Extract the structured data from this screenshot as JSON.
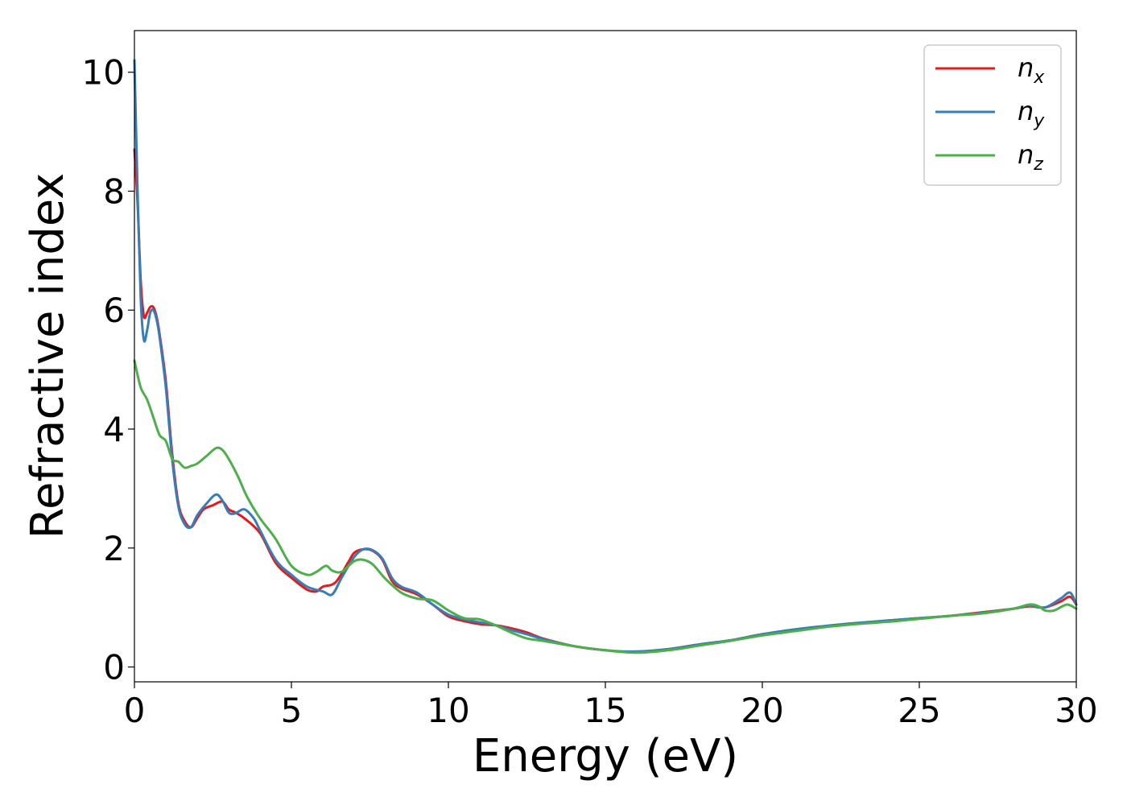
{
  "chart_data": {
    "type": "line",
    "xlabel": "Energy (eV)",
    "ylabel": "Refractive index",
    "xlim": [
      0,
      30
    ],
    "ylim": [
      -0.25,
      10.7
    ],
    "xticks": [
      "0",
      "5",
      "10",
      "15",
      "20",
      "25",
      "30"
    ],
    "yticks": [
      "0",
      "2",
      "4",
      "6",
      "8",
      "10"
    ],
    "legend_position": "top-right",
    "grid": false,
    "series": [
      {
        "name": "n",
        "subscript": "x",
        "color": "#e41a1c",
        "x": [
          0,
          0.1,
          0.2,
          0.3,
          0.4,
          0.5,
          0.6,
          0.7,
          0.8,
          1.0,
          1.2,
          1.4,
          1.6,
          1.8,
          2.0,
          2.2,
          2.5,
          2.8,
          3.0,
          3.2,
          3.5,
          4.0,
          4.5,
          5.0,
          5.5,
          5.8,
          6.0,
          6.4,
          6.8,
          7.0,
          7.3,
          7.6,
          7.9,
          8.2,
          8.5,
          9.0,
          9.5,
          10.0,
          10.5,
          11.0,
          11.5,
          12.0,
          12.5,
          13.0,
          14.0,
          15.0,
          16.0,
          17.0,
          18.0,
          19.0,
          20.0,
          21.0,
          22.0,
          23.0,
          24.0,
          25.0,
          26.0,
          27.0,
          28.0,
          28.5,
          29.0,
          29.5,
          29.8,
          30.0
        ],
        "y": [
          8.7,
          7.8,
          6.5,
          5.9,
          5.95,
          6.05,
          6.05,
          5.9,
          5.6,
          4.8,
          3.6,
          2.75,
          2.45,
          2.35,
          2.5,
          2.65,
          2.72,
          2.78,
          2.65,
          2.6,
          2.5,
          2.25,
          1.75,
          1.5,
          1.3,
          1.27,
          1.35,
          1.42,
          1.75,
          1.92,
          1.98,
          1.95,
          1.8,
          1.45,
          1.32,
          1.22,
          1.05,
          0.85,
          0.77,
          0.72,
          0.7,
          0.65,
          0.58,
          0.48,
          0.35,
          0.28,
          0.25,
          0.3,
          0.38,
          0.45,
          0.55,
          0.62,
          0.68,
          0.73,
          0.78,
          0.82,
          0.86,
          0.92,
          0.98,
          1.02,
          1.0,
          1.1,
          1.18,
          1.05
        ]
      },
      {
        "name": "n",
        "subscript": "y",
        "color": "#377eb8",
        "x": [
          0,
          0.1,
          0.2,
          0.3,
          0.4,
          0.5,
          0.6,
          0.7,
          0.8,
          1.0,
          1.2,
          1.4,
          1.6,
          1.8,
          2.0,
          2.3,
          2.6,
          2.8,
          3.0,
          3.2,
          3.5,
          3.8,
          4.0,
          4.5,
          5.0,
          5.5,
          6.0,
          6.3,
          6.6,
          7.0,
          7.3,
          7.6,
          7.9,
          8.2,
          8.5,
          9.0,
          9.5,
          10.0,
          10.5,
          11.0,
          11.5,
          12.0,
          12.5,
          13.0,
          14.0,
          15.0,
          16.0,
          17.0,
          18.0,
          19.0,
          20.0,
          21.0,
          22.0,
          23.0,
          24.0,
          25.0,
          26.0,
          27.0,
          28.0,
          28.5,
          29.0,
          29.5,
          29.8,
          30.0
        ],
        "y": [
          10.2,
          8.0,
          6.2,
          5.5,
          5.65,
          5.95,
          6.0,
          5.85,
          5.55,
          4.7,
          3.5,
          2.7,
          2.4,
          2.35,
          2.55,
          2.75,
          2.9,
          2.8,
          2.6,
          2.58,
          2.65,
          2.5,
          2.3,
          1.8,
          1.55,
          1.35,
          1.27,
          1.22,
          1.5,
          1.85,
          1.98,
          1.96,
          1.82,
          1.5,
          1.35,
          1.25,
          1.05,
          0.88,
          0.8,
          0.75,
          0.7,
          0.62,
          0.55,
          0.47,
          0.35,
          0.28,
          0.26,
          0.3,
          0.38,
          0.45,
          0.55,
          0.63,
          0.69,
          0.74,
          0.78,
          0.82,
          0.86,
          0.91,
          0.98,
          1.03,
          1.0,
          1.15,
          1.25,
          1.05
        ]
      },
      {
        "name": "n",
        "subscript": "z",
        "color": "#4daf4a",
        "x": [
          0,
          0.2,
          0.4,
          0.6,
          0.8,
          1.0,
          1.2,
          1.4,
          1.6,
          1.8,
          2.0,
          2.3,
          2.6,
          2.8,
          3.0,
          3.3,
          3.6,
          4.0,
          4.5,
          5.0,
          5.5,
          5.8,
          6.1,
          6.3,
          6.6,
          7.0,
          7.3,
          7.6,
          8.0,
          8.5,
          9.0,
          9.5,
          10.0,
          10.5,
          11.0,
          11.5,
          12.0,
          12.5,
          13.0,
          14.0,
          15.0,
          16.0,
          17.0,
          18.0,
          19.0,
          20.0,
          21.0,
          22.0,
          23.0,
          24.0,
          25.0,
          26.0,
          27.0,
          28.0,
          28.5,
          28.8,
          29.0,
          29.3,
          29.7,
          30.0
        ],
        "y": [
          5.15,
          4.7,
          4.5,
          4.2,
          3.9,
          3.8,
          3.5,
          3.45,
          3.35,
          3.38,
          3.42,
          3.55,
          3.68,
          3.65,
          3.5,
          3.2,
          2.85,
          2.5,
          2.15,
          1.7,
          1.55,
          1.6,
          1.7,
          1.62,
          1.6,
          1.78,
          1.8,
          1.72,
          1.48,
          1.25,
          1.15,
          1.12,
          0.95,
          0.82,
          0.8,
          0.7,
          0.58,
          0.48,
          0.44,
          0.35,
          0.28,
          0.24,
          0.28,
          0.36,
          0.44,
          0.53,
          0.6,
          0.67,
          0.72,
          0.76,
          0.81,
          0.86,
          0.9,
          0.98,
          1.05,
          1.02,
          0.95,
          0.95,
          1.05,
          0.98
        ]
      }
    ]
  }
}
